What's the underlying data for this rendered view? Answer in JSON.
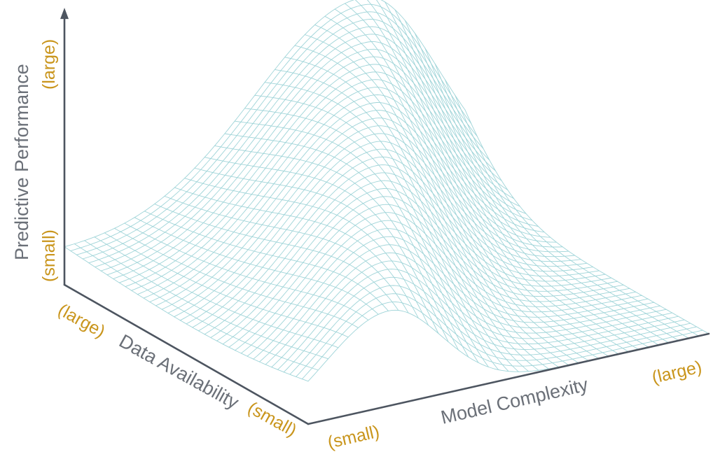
{
  "chart_data": {
    "type": "surface",
    "title": "",
    "xlabel": "Model Complexity",
    "ylabel": "Data Availability",
    "zlabel": "Predictive Performance",
    "x_tick_labels": [
      "(small)",
      "(large)"
    ],
    "y_tick_labels": [
      "(large)",
      "(small)"
    ],
    "z_tick_labels": [
      "(small)",
      "(large)"
    ],
    "x_range": [
      0,
      1
    ],
    "y_range": [
      0,
      1
    ],
    "z_range": [
      0,
      1
    ],
    "grid": false,
    "surface": {
      "description_of_axes": "x = model complexity (0 small to 1 large), y = data availability (0 small to 1 large), z = predictive performance (0 small to 1 large)",
      "mesh_resolution": [
        40,
        40
      ],
      "peak_complexity_small_data": 0.2,
      "peak_complexity_large_data": 0.75,
      "peak_width": 0.28,
      "performance_small_data": 0.35,
      "performance_large_data": 0.78,
      "low_complexity_baseline_large_data": 0.12,
      "high_complexity_falloff": 0.35
    }
  },
  "colors": {
    "mesh": "#9fd4d8",
    "axis": "#4d5560",
    "axis_title": "#6b7078",
    "tick_label": "#c9951c"
  }
}
